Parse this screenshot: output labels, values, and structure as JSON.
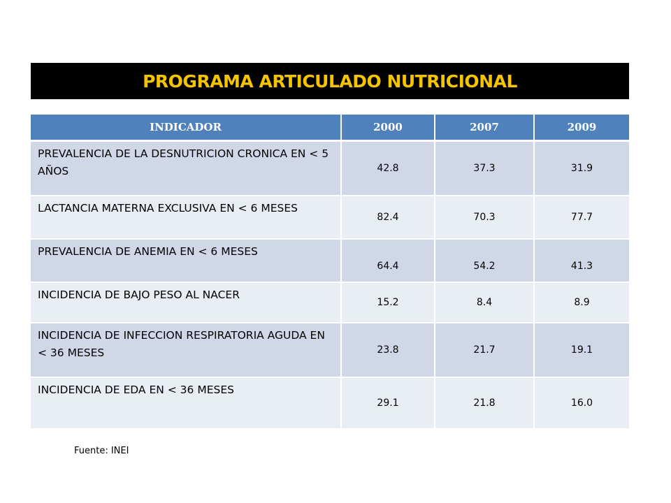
{
  "title": "PROGRAMA ARTICULADO NUTRICIONAL",
  "table": {
    "headers": [
      "INDICADOR",
      "2000",
      "2007",
      "2009"
    ],
    "rows": [
      {
        "indicator": "PREVALENCIA  DE LA DESNUTRICION CRONICA EN < 5 AÑOS",
        "values": [
          "42.8",
          "37.3",
          "31.9"
        ]
      },
      {
        "indicator": "LACTANCIA MATERNA EXCLUSIVA EN < 6 MESES",
        "values": [
          "82.4",
          "70.3",
          "77.7"
        ]
      },
      {
        "indicator": "PREVALENCIA DE ANEMIA EN < 6 MESES",
        "values": [
          "64.4",
          "54.2",
          "41.3"
        ]
      },
      {
        "indicator": "INCIDENCIA DE BAJO PESO AL NACER",
        "values": [
          "15.2",
          "8.4",
          "8.9"
        ]
      },
      {
        "indicator": "INCIDENCIA DE INFECCION RESPIRATORIA AGUDA EN < 36 MESES",
        "values": [
          "23.8",
          "21.7",
          "19.1"
        ]
      },
      {
        "indicator": "INCIDENCIA DE EDA EN < 36 MESES",
        "values": [
          "29.1",
          "21.8",
          "16.0"
        ]
      }
    ]
  },
  "source": "Fuente: INEI",
  "colors": {
    "title_background": "#000000",
    "title_text": "#f5c400",
    "header_background": "#4f81bd",
    "row_dark": "#d0d8e8",
    "row_light": "#e9edf4"
  }
}
